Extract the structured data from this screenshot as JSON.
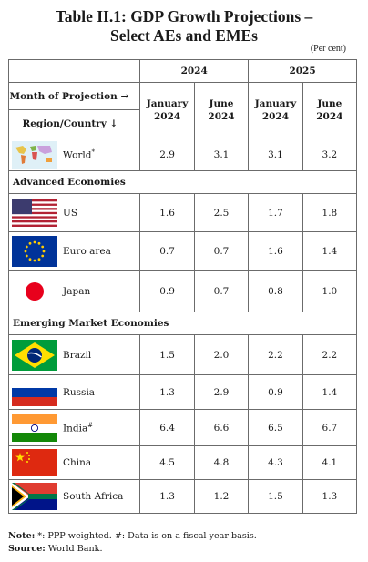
{
  "title_line1": "Table II.1: GDP Growth Projections –",
  "title_line2": "Select AEs and EMEs",
  "unit": "(Per cent)",
  "header": {
    "years": [
      "2024",
      "2025"
    ],
    "month_label": "Month of Projection →",
    "region_label": "Region/Country ↓",
    "months": [
      {
        "line1": "January",
        "line2": "2024"
      },
      {
        "line1": "June",
        "line2": "2024"
      },
      {
        "line1": "January",
        "line2": "2024"
      },
      {
        "line1": "June",
        "line2": "2024"
      }
    ]
  },
  "world": {
    "name": "World",
    "sup": "*",
    "flag": "world-map-icon",
    "values": [
      "2.9",
      "3.1",
      "3.1",
      "3.2"
    ]
  },
  "sections": [
    {
      "title": "Advanced Economies",
      "rows": [
        {
          "name": "US",
          "sup": "",
          "flag": "us-flag-icon",
          "values": [
            "1.6",
            "2.5",
            "1.7",
            "1.8"
          ]
        },
        {
          "name": "Euro area",
          "sup": "",
          "flag": "eu-flag-icon",
          "values": [
            "0.7",
            "0.7",
            "1.6",
            "1.4"
          ]
        },
        {
          "name": "Japan",
          "sup": "",
          "flag": "japan-flag-icon",
          "values": [
            "0.9",
            "0.7",
            "0.8",
            "1.0"
          ]
        }
      ]
    },
    {
      "title": "Emerging Market Economies",
      "rows": [
        {
          "name": "Brazil",
          "sup": "",
          "flag": "brazil-flag-icon",
          "values": [
            "1.5",
            "2.0",
            "2.2",
            "2.2"
          ]
        },
        {
          "name": "Russia",
          "sup": "",
          "flag": "russia-flag-icon",
          "values": [
            "1.3",
            "2.9",
            "0.9",
            "1.4"
          ]
        },
        {
          "name": "India",
          "sup": "#",
          "flag": "india-flag-icon",
          "values": [
            "6.4",
            "6.6",
            "6.5",
            "6.7"
          ]
        },
        {
          "name": "China",
          "sup": "",
          "flag": "china-flag-icon",
          "values": [
            "4.5",
            "4.8",
            "4.3",
            "4.1"
          ]
        },
        {
          "name": "South Africa",
          "sup": "",
          "flag": "south-africa-flag-icon",
          "values": [
            "1.3",
            "1.2",
            "1.5",
            "1.3"
          ]
        }
      ]
    }
  ],
  "note": {
    "label": "Note:",
    "text": " *: PPP weighted. #: Data is on a fiscal year basis.",
    "source_label": "Source:",
    "source_text": " World Bank."
  },
  "colors": {
    "border": "#6b6b6b",
    "us_red": "#b22234",
    "us_blue": "#3c3b6e",
    "eu_blue": "#003399",
    "eu_star": "#ffcc00",
    "japan_red": "#bc002d"
  }
}
